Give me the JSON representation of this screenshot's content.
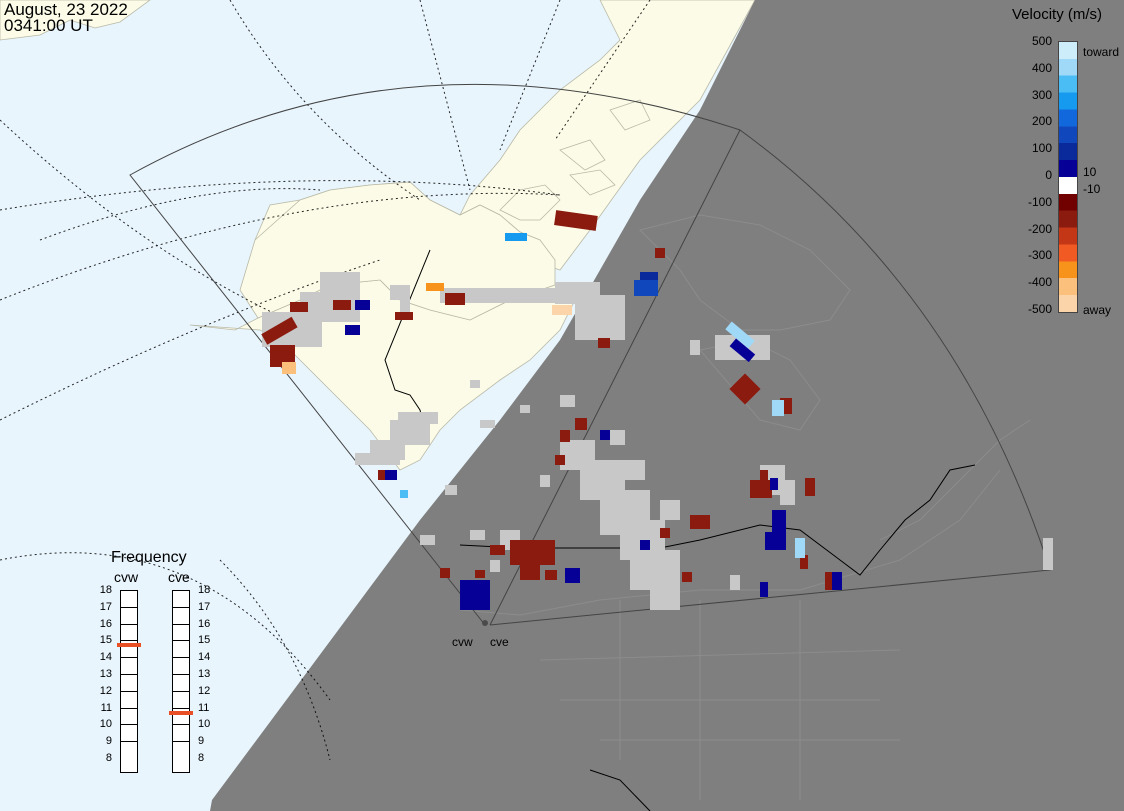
{
  "title": {
    "date": "August, 23 2022",
    "time": "0341:00 UT"
  },
  "colorbar": {
    "title": "Velocity (m/s)",
    "ticks": [
      "500",
      "400",
      "300",
      "200",
      "100",
      "0",
      "-100",
      "-200",
      "-300",
      "-400",
      "-500"
    ],
    "inner_ticks": [
      "10",
      "-10"
    ],
    "toward_label": "toward",
    "away_label": "away",
    "colors": [
      "#fbd5a9",
      "#fbc07c",
      "#f7931b",
      "#f15a23",
      "#c33716",
      "#8b1a0f",
      "#710000",
      "#ffffff",
      "#060097",
      "#0a2a9b",
      "#1147bd",
      "#1168dd",
      "#169af0",
      "#4bbdf5",
      "#9fd9f7",
      "#cdedfb"
    ]
  },
  "frequency": {
    "title": "Frequency",
    "radars": [
      {
        "name": "cvw",
        "value_mhz": 15
      },
      {
        "name": "cve",
        "value_mhz": 11
      }
    ],
    "scale": [
      "18",
      "17",
      "16",
      "15",
      "14",
      "13",
      "12",
      "11",
      "10",
      "9",
      "8"
    ],
    "marker_color": "#e94f25"
  },
  "radar_sites": [
    "cvw",
    "cve"
  ],
  "map_colors": {
    "ocean": "#e8f5fd",
    "land": "#fbfbe7",
    "night": "#7f7f7f",
    "ground_scatter": "#c8c8c8"
  }
}
